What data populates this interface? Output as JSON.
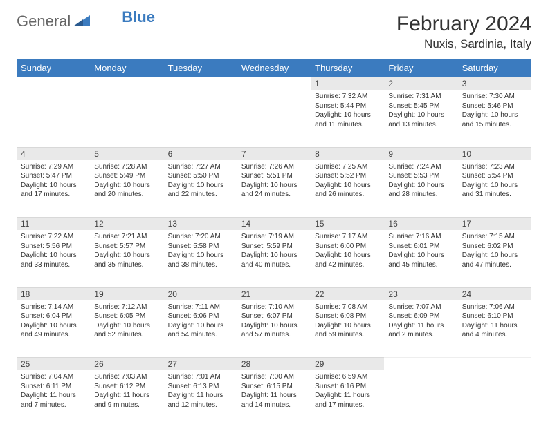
{
  "logo": {
    "part1": "General",
    "part2": "Blue"
  },
  "title": "February 2024",
  "location": "Nuxis, Sardinia, Italy",
  "colors": {
    "header_bg": "#3b7bbf",
    "header_text": "#ffffff",
    "daynum_bg": "#e9e9e9",
    "text": "#333333"
  },
  "day_headers": [
    "Sunday",
    "Monday",
    "Tuesday",
    "Wednesday",
    "Thursday",
    "Friday",
    "Saturday"
  ],
  "weeks": [
    [
      null,
      null,
      null,
      null,
      {
        "n": "1",
        "sr": "7:32 AM",
        "ss": "5:44 PM",
        "dl": "10 hours and 11 minutes."
      },
      {
        "n": "2",
        "sr": "7:31 AM",
        "ss": "5:45 PM",
        "dl": "10 hours and 13 minutes."
      },
      {
        "n": "3",
        "sr": "7:30 AM",
        "ss": "5:46 PM",
        "dl": "10 hours and 15 minutes."
      }
    ],
    [
      {
        "n": "4",
        "sr": "7:29 AM",
        "ss": "5:47 PM",
        "dl": "10 hours and 17 minutes."
      },
      {
        "n": "5",
        "sr": "7:28 AM",
        "ss": "5:49 PM",
        "dl": "10 hours and 20 minutes."
      },
      {
        "n": "6",
        "sr": "7:27 AM",
        "ss": "5:50 PM",
        "dl": "10 hours and 22 minutes."
      },
      {
        "n": "7",
        "sr": "7:26 AM",
        "ss": "5:51 PM",
        "dl": "10 hours and 24 minutes."
      },
      {
        "n": "8",
        "sr": "7:25 AM",
        "ss": "5:52 PM",
        "dl": "10 hours and 26 minutes."
      },
      {
        "n": "9",
        "sr": "7:24 AM",
        "ss": "5:53 PM",
        "dl": "10 hours and 28 minutes."
      },
      {
        "n": "10",
        "sr": "7:23 AM",
        "ss": "5:54 PM",
        "dl": "10 hours and 31 minutes."
      }
    ],
    [
      {
        "n": "11",
        "sr": "7:22 AM",
        "ss": "5:56 PM",
        "dl": "10 hours and 33 minutes."
      },
      {
        "n": "12",
        "sr": "7:21 AM",
        "ss": "5:57 PM",
        "dl": "10 hours and 35 minutes."
      },
      {
        "n": "13",
        "sr": "7:20 AM",
        "ss": "5:58 PM",
        "dl": "10 hours and 38 minutes."
      },
      {
        "n": "14",
        "sr": "7:19 AM",
        "ss": "5:59 PM",
        "dl": "10 hours and 40 minutes."
      },
      {
        "n": "15",
        "sr": "7:17 AM",
        "ss": "6:00 PM",
        "dl": "10 hours and 42 minutes."
      },
      {
        "n": "16",
        "sr": "7:16 AM",
        "ss": "6:01 PM",
        "dl": "10 hours and 45 minutes."
      },
      {
        "n": "17",
        "sr": "7:15 AM",
        "ss": "6:02 PM",
        "dl": "10 hours and 47 minutes."
      }
    ],
    [
      {
        "n": "18",
        "sr": "7:14 AM",
        "ss": "6:04 PM",
        "dl": "10 hours and 49 minutes."
      },
      {
        "n": "19",
        "sr": "7:12 AM",
        "ss": "6:05 PM",
        "dl": "10 hours and 52 minutes."
      },
      {
        "n": "20",
        "sr": "7:11 AM",
        "ss": "6:06 PM",
        "dl": "10 hours and 54 minutes."
      },
      {
        "n": "21",
        "sr": "7:10 AM",
        "ss": "6:07 PM",
        "dl": "10 hours and 57 minutes."
      },
      {
        "n": "22",
        "sr": "7:08 AM",
        "ss": "6:08 PM",
        "dl": "10 hours and 59 minutes."
      },
      {
        "n": "23",
        "sr": "7:07 AM",
        "ss": "6:09 PM",
        "dl": "11 hours and 2 minutes."
      },
      {
        "n": "24",
        "sr": "7:06 AM",
        "ss": "6:10 PM",
        "dl": "11 hours and 4 minutes."
      }
    ],
    [
      {
        "n": "25",
        "sr": "7:04 AM",
        "ss": "6:11 PM",
        "dl": "11 hours and 7 minutes."
      },
      {
        "n": "26",
        "sr": "7:03 AM",
        "ss": "6:12 PM",
        "dl": "11 hours and 9 minutes."
      },
      {
        "n": "27",
        "sr": "7:01 AM",
        "ss": "6:13 PM",
        "dl": "11 hours and 12 minutes."
      },
      {
        "n": "28",
        "sr": "7:00 AM",
        "ss": "6:15 PM",
        "dl": "11 hours and 14 minutes."
      },
      {
        "n": "29",
        "sr": "6:59 AM",
        "ss": "6:16 PM",
        "dl": "11 hours and 17 minutes."
      },
      null,
      null
    ]
  ],
  "labels": {
    "sunrise": "Sunrise: ",
    "sunset": "Sunset: ",
    "daylight": "Daylight: "
  }
}
